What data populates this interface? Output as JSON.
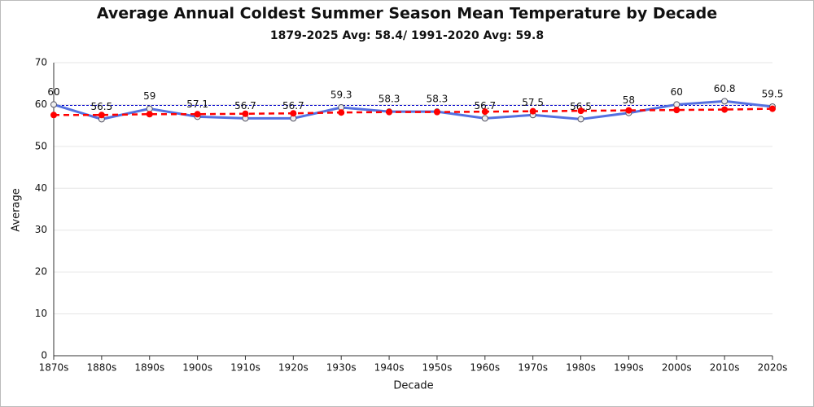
{
  "chart_data": {
    "type": "line",
    "title": "Average Annual Coldest Summer Season Mean Temperature by Decade",
    "subtitle": "1879-2025 Avg: 58.4/ 1991-2020 Avg: 59.8",
    "x_label": "Decade",
    "y_label": "Average",
    "categories": [
      "1870s",
      "1880s",
      "1890s",
      "1900s",
      "1910s",
      "1920s",
      "1930s",
      "1940s",
      "1950s",
      "1960s",
      "1970s",
      "1980s",
      "1990s",
      "2000s",
      "2010s",
      "2020s"
    ],
    "series": [
      {
        "color": "#5470e0",
        "values": [
          60,
          56.5,
          59,
          57.1,
          56.7,
          56.7,
          59.3,
          58.3,
          58.3,
          56.7,
          57.5,
          56.5,
          58,
          60,
          60.8,
          59.5
        ]
      },
      {
        "color": "#ff0000",
        "values": [
          57.5,
          57.5,
          57.7,
          57.7,
          57.8,
          57.9,
          58.1,
          58.2,
          58.2,
          58.3,
          58.4,
          58.5,
          58.6,
          58.7,
          58.8,
          59.0
        ]
      }
    ],
    "reference_line": {
      "value": 59.8,
      "color": "#0000cc"
    },
    "ylim": [
      0,
      70
    ],
    "yticks": [
      0,
      10,
      20,
      30,
      40,
      50,
      60,
      70
    ],
    "grid": true
  }
}
